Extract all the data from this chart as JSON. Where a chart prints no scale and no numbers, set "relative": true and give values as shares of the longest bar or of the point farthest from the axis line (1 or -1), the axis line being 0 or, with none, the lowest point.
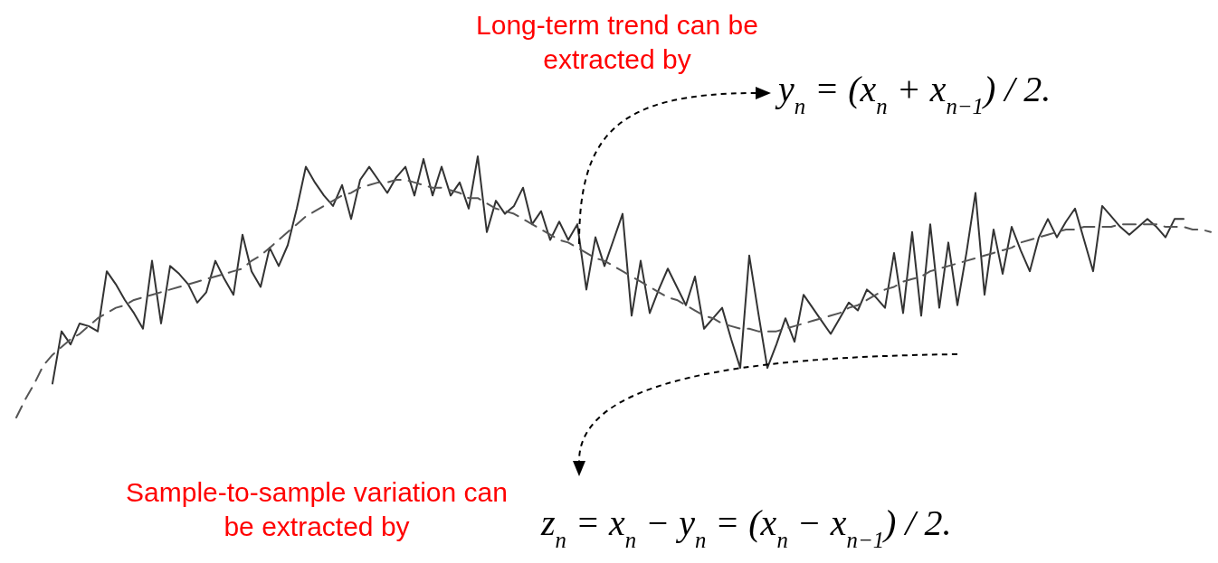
{
  "chart_data": {
    "type": "line",
    "relative": true,
    "categories": [
      null,
      null,
      null,
      null,
      null,
      null,
      null,
      null,
      null,
      null,
      null,
      null,
      null,
      null,
      null,
      null,
      null,
      null,
      null,
      null,
      null,
      null,
      null,
      null,
      null,
      null,
      null,
      null,
      null,
      null,
      null,
      null,
      null,
      null,
      null,
      null,
      null,
      null,
      null,
      null,
      null,
      null,
      null,
      null,
      null,
      null,
      null,
      null,
      null,
      null,
      null,
      null,
      null,
      null,
      null,
      null,
      null,
      null,
      null,
      null,
      null,
      null,
      null,
      null,
      null,
      null,
      null,
      null,
      null,
      null,
      null,
      null,
      null,
      null,
      null,
      null,
      null,
      null,
      null,
      null,
      null,
      null,
      null,
      null,
      null,
      null,
      null,
      null,
      null,
      null,
      null,
      null,
      null,
      null,
      null,
      null,
      null,
      null,
      null,
      null,
      null,
      null,
      null,
      null,
      null,
      null,
      null,
      null,
      null,
      null,
      null,
      null,
      null,
      null,
      null,
      null,
      null,
      null,
      null,
      null,
      null,
      null,
      null,
      null,
      null,
      null,
      null,
      null,
      null,
      null,
      null,
      null,
      null
    ],
    "series": [
      {
        "color": "#333333",
        "line_style": "solid",
        "values": [
          null,
          null,
          null,
          null,
          0.13,
          0.33,
          0.28,
          0.36,
          0.35,
          0.33,
          0.56,
          0.51,
          0.45,
          0.4,
          0.34,
          0.6,
          0.36,
          0.58,
          0.55,
          0.51,
          0.44,
          0.48,
          0.6,
          0.53,
          0.47,
          0.7,
          0.56,
          0.5,
          0.65,
          0.58,
          0.66,
          0.8,
          0.96,
          0.9,
          0.85,
          0.81,
          0.89,
          0.76,
          0.91,
          0.96,
          0.91,
          0.86,
          0.92,
          0.96,
          0.85,
          0.99,
          0.85,
          0.96,
          0.85,
          0.9,
          0.8,
          1.0,
          0.71,
          0.83,
          0.78,
          0.81,
          0.88,
          0.74,
          0.79,
          0.68,
          0.75,
          0.68,
          0.74,
          0.49,
          0.69,
          0.58,
          0.68,
          0.78,
          0.39,
          0.6,
          0.4,
          0.49,
          0.57,
          0.5,
          0.43,
          0.54,
          0.34,
          0.38,
          0.42,
          0.3,
          0.19,
          0.62,
          0.4,
          0.19,
          0.28,
          0.38,
          0.29,
          0.47,
          0.42,
          0.37,
          0.32,
          0.38,
          0.44,
          0.41,
          0.49,
          0.46,
          0.42,
          0.63,
          0.4,
          0.71,
          0.39,
          0.74,
          0.42,
          0.67,
          0.43,
          0.63,
          0.86,
          0.47,
          0.72,
          0.55,
          0.73,
          0.64,
          0.56,
          0.69,
          0.76,
          0.69,
          0.75,
          0.8,
          0.68,
          0.56,
          0.81,
          0.77,
          0.73,
          0.7,
          0.73,
          0.76,
          0.73,
          0.69,
          0.76,
          0.76,
          null,
          null,
          null
        ]
      },
      {
        "color": "#555555",
        "line_style": "dashed",
        "values": [
          0.0,
          0.07,
          0.13,
          0.2,
          0.24,
          0.27,
          0.3,
          0.32,
          0.35,
          0.38,
          0.4,
          0.42,
          0.43,
          0.45,
          0.46,
          0.47,
          0.48,
          0.49,
          0.5,
          0.51,
          0.52,
          0.53,
          0.54,
          0.55,
          0.56,
          0.57,
          0.6,
          0.62,
          0.65,
          0.68,
          0.71,
          0.74,
          0.77,
          0.79,
          0.81,
          0.83,
          0.85,
          0.86,
          0.88,
          0.89,
          0.9,
          0.9,
          0.91,
          0.91,
          0.9,
          0.89,
          0.88,
          0.88,
          0.87,
          0.86,
          0.84,
          0.84,
          0.82,
          0.8,
          0.79,
          0.78,
          0.76,
          0.74,
          0.72,
          0.7,
          0.68,
          0.67,
          0.65,
          0.63,
          0.61,
          0.6,
          0.58,
          0.56,
          0.54,
          0.52,
          0.5,
          0.48,
          0.46,
          0.45,
          0.43,
          0.41,
          0.39,
          0.38,
          0.36,
          0.35,
          0.34,
          0.34,
          0.33,
          0.33,
          0.33,
          0.34,
          0.35,
          0.36,
          0.37,
          0.38,
          0.39,
          0.4,
          0.42,
          0.43,
          0.45,
          0.47,
          0.49,
          0.5,
          0.52,
          0.53,
          0.54,
          0.56,
          0.57,
          0.58,
          0.59,
          0.6,
          0.61,
          0.62,
          0.63,
          0.64,
          0.65,
          0.67,
          0.68,
          0.69,
          0.7,
          0.71,
          0.72,
          0.72,
          0.73,
          0.73,
          0.73,
          0.73,
          0.74,
          0.74,
          0.74,
          0.74,
          0.74,
          0.73,
          0.73,
          0.73,
          0.72,
          0.72,
          0.71
        ]
      }
    ],
    "annotations": [
      "Long-term trend can be extracted by",
      "y$_{n}$ = (x$_{n}$ + x$_{n−1}$) / 2.",
      "Sample-to-sample variation can be extracted by",
      "z$_{n}$ = x$_{n}$ − y$_{n}$ = (x$_{n}$ − x$_{n−1}$) / 2."
    ]
  }
}
